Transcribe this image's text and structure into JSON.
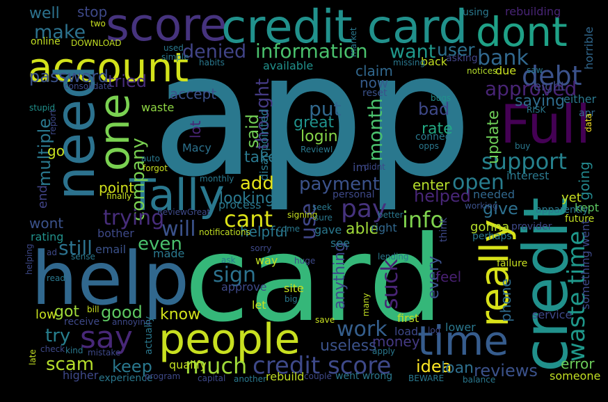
{
  "image": {
    "background": "#000000"
  },
  "words": [
    {
      "id": "app",
      "text": "app",
      "color": "#2a788e"
    },
    {
      "id": "card-big",
      "text": "card",
      "color": "#35b779"
    },
    {
      "id": "help",
      "text": "help",
      "color": "#31688e"
    },
    {
      "id": "credit-vert",
      "text": "credit",
      "color": "#21918c"
    },
    {
      "id": "score",
      "text": "score",
      "color": "#46337e"
    },
    {
      "id": "credit-card",
      "text": "credit card",
      "color": "#21918c"
    },
    {
      "id": "dont",
      "text": "dont",
      "color": "#1fa187"
    },
    {
      "id": "account",
      "text": "account",
      "color": "#d2e21b"
    },
    {
      "id": "need",
      "text": "need",
      "color": "#2c728e"
    },
    {
      "id": "full",
      "text": "Full",
      "color": "#440154"
    },
    {
      "id": "tally",
      "text": "Tally",
      "color": "#2a788e"
    },
    {
      "id": "people",
      "text": "people",
      "color": "#c8e020"
    },
    {
      "id": "time",
      "text": "time",
      "color": "#365c8d"
    },
    {
      "id": "say",
      "text": "say",
      "color": "#482878"
    },
    {
      "id": "one",
      "text": "one",
      "color": "#7ad151"
    },
    {
      "id": "really",
      "text": "really",
      "color": "#d8e219"
    },
    {
      "id": "credit-score",
      "text": "credit score",
      "color": "#3e4989"
    },
    {
      "id": "waste-time",
      "text": "waste time",
      "color": "#1f988b"
    },
    {
      "id": "debt",
      "text": "debt",
      "color": "#3b528b"
    },
    {
      "id": "bank",
      "text": "bank",
      "color": "#31688e"
    },
    {
      "id": "support",
      "text": "support",
      "color": "#26828e"
    },
    {
      "id": "approved",
      "text": "approved",
      "color": "#482475"
    },
    {
      "id": "information",
      "text": "information",
      "color": "#4ac16d"
    },
    {
      "id": "denied",
      "text": "denied",
      "color": "#414487"
    },
    {
      "id": "make",
      "text": "make",
      "color": "#2c728e"
    },
    {
      "id": "want",
      "text": "want",
      "color": "#1f988b"
    },
    {
      "id": "user",
      "text": "user",
      "color": "#2d708e"
    },
    {
      "id": "password",
      "text": "password",
      "color": "#3b528b"
    },
    {
      "id": "tried",
      "text": "tried",
      "color": "#472d7b"
    },
    {
      "id": "company",
      "text": "company",
      "color": "#7ad151"
    },
    {
      "id": "put",
      "text": "put",
      "color": "#31688e"
    },
    {
      "id": "bad",
      "text": "bad",
      "color": "#3e4989"
    },
    {
      "id": "rate",
      "text": "rate",
      "color": "#23a983"
    },
    {
      "id": "login",
      "text": "login",
      "color": "#86d549"
    },
    {
      "id": "great",
      "text": "great",
      "color": "#20928c"
    },
    {
      "id": "month",
      "text": "month",
      "color": "#4ac16d"
    },
    {
      "id": "thought",
      "text": "thought",
      "color": "#443a83"
    },
    {
      "id": "said",
      "text": "said",
      "color": "#73d056"
    },
    {
      "id": "take",
      "text": "take",
      "color": "#2a788e"
    },
    {
      "id": "open",
      "text": "open",
      "color": "#287d8e"
    },
    {
      "id": "payment",
      "text": "payment",
      "color": "#3b528b"
    },
    {
      "id": "add",
      "text": "add",
      "color": "#e5e419"
    },
    {
      "id": "looking",
      "text": "looking",
      "color": "#2a788e"
    },
    {
      "id": "will",
      "text": "will",
      "color": "#3b528b"
    },
    {
      "id": "trying",
      "text": "trying",
      "color": "#472d7b"
    },
    {
      "id": "pay",
      "text": "pay",
      "color": "#46337e"
    },
    {
      "id": "cant",
      "text": "cant",
      "color": "#dde318"
    },
    {
      "id": "info",
      "text": "info",
      "color": "#7fd34e"
    },
    {
      "id": "even",
      "text": "even",
      "color": "#4ac16d"
    },
    {
      "id": "still",
      "text": "still",
      "color": "#2c728e"
    },
    {
      "id": "point",
      "text": "point",
      "color": "#d2e21b"
    },
    {
      "id": "multiple",
      "text": "multiple",
      "color": "#2a788e"
    },
    {
      "id": "go",
      "text": "go",
      "color": "#c8e020"
    },
    {
      "id": "use",
      "text": "use",
      "color": "#404688"
    },
    {
      "id": "able",
      "text": "able",
      "color": "#a0da39"
    },
    {
      "id": "give",
      "text": "give",
      "color": "#2d708e"
    },
    {
      "id": "helped",
      "text": "helped",
      "color": "#482677"
    },
    {
      "id": "enter",
      "text": "enter",
      "color": "#b5de2b"
    },
    {
      "id": "suck",
      "text": "suck",
      "color": "#482475"
    },
    {
      "id": "sign",
      "text": "sign",
      "color": "#2c728e"
    },
    {
      "id": "anything",
      "text": "anything",
      "color": "#3e4989"
    },
    {
      "id": "work",
      "text": "work",
      "color": "#355f8d"
    },
    {
      "id": "every",
      "text": "every",
      "color": "#3b528b"
    },
    {
      "id": "feel",
      "text": "feel",
      "color": "#482071"
    },
    {
      "id": "phone",
      "text": "phone",
      "color": "#2f6c8e"
    },
    {
      "id": "got",
      "text": "got",
      "color": "#a0da39"
    },
    {
      "id": "good",
      "text": "good",
      "color": "#5ec962"
    },
    {
      "id": "know",
      "text": "know",
      "color": "#d2e21b"
    },
    {
      "id": "try",
      "text": "try",
      "color": "#277f8e"
    },
    {
      "id": "scam",
      "text": "scam",
      "color": "#b5de2b"
    },
    {
      "id": "much",
      "text": "much",
      "color": "#a0da39"
    },
    {
      "id": "keep",
      "text": "keep",
      "color": "#2a788e"
    },
    {
      "id": "useless",
      "text": "useless",
      "color": "#3b528b"
    },
    {
      "id": "money",
      "text": "money",
      "color": "#443983"
    },
    {
      "id": "idea",
      "text": "idea",
      "color": "#fde725"
    },
    {
      "id": "loan",
      "text": "loan",
      "color": "#2e6f8e"
    },
    {
      "id": "reviews",
      "text": "reviews",
      "color": "#3b528b"
    },
    {
      "id": "error",
      "text": "error",
      "color": "#6ccd5a"
    },
    {
      "id": "someone",
      "text": "someone",
      "color": "#c2df23"
    },
    {
      "id": "update",
      "text": "update",
      "color": "#6ece58"
    },
    {
      "id": "going",
      "text": "going",
      "color": "#23888e"
    },
    {
      "id": "saying",
      "text": "saying",
      "color": "#2f6c8e"
    },
    {
      "id": "accept",
      "text": "accept",
      "color": "#3b528b"
    },
    {
      "id": "waste",
      "text": "waste",
      "color": "#8fd744"
    },
    {
      "id": "lot",
      "text": "lot",
      "color": "#482475"
    },
    {
      "id": "disappointed",
      "text": "disappointed",
      "color": "#2a788e"
    },
    {
      "id": "macy",
      "text": "Macy",
      "color": "#2c728e"
    },
    {
      "id": "yet",
      "text": "yet",
      "color": "#c8e020"
    },
    {
      "id": "kept",
      "text": "kept",
      "color": "#5ec962"
    },
    {
      "id": "wont",
      "text": "wont",
      "color": "#3b528b"
    },
    {
      "id": "end",
      "text": "end",
      "color": "#414487"
    },
    {
      "id": "gonna",
      "text": "gonna",
      "color": "#b5de2b"
    },
    {
      "id": "helpful",
      "text": "helpful",
      "color": "#2a788e"
    },
    {
      "id": "now",
      "text": "now",
      "color": "#365c8d"
    },
    {
      "id": "claim",
      "text": "claim",
      "color": "#31688e"
    },
    {
      "id": "eight",
      "text": "eight",
      "color": "#3e4989"
    },
    {
      "id": "email",
      "text": "email",
      "color": "#3b528b"
    },
    {
      "id": "process",
      "text": "process",
      "color": "#2a788e"
    },
    {
      "id": "rating",
      "text": "rating",
      "color": "#21918c"
    },
    {
      "id": "well",
      "text": "well",
      "color": "#2c728e"
    },
    {
      "id": "stop",
      "text": "stop",
      "color": "#3e4989"
    },
    {
      "id": "using",
      "text": "using",
      "color": "#2a788e"
    },
    {
      "id": "rebuilding",
      "text": "rebuilding",
      "color": "#482475"
    },
    {
      "id": "available",
      "text": "available",
      "color": "#21918c"
    },
    {
      "id": "reset",
      "text": "reset",
      "color": "#3b528b"
    },
    {
      "id": "due",
      "text": "due",
      "color": "#c8e020"
    },
    {
      "id": "notices",
      "text": "notices",
      "color": "#b5de2b"
    },
    {
      "id": "saw",
      "text": "saw",
      "color": "#2a788e"
    },
    {
      "id": "either",
      "text": "either",
      "color": "#2a788e"
    },
    {
      "id": "apr",
      "text": "apr",
      "color": "#31688e"
    },
    {
      "id": "risk",
      "text": "RISK",
      "color": "#2a788e"
    },
    {
      "id": "data",
      "text": "data",
      "color": "#fde725"
    },
    {
      "id": "horrible",
      "text": "horrible",
      "color": "#31688e"
    },
    {
      "id": "bugs",
      "text": "bugs",
      "color": "#21918c"
    },
    {
      "id": "connect",
      "text": "connect",
      "color": "#2a788e"
    },
    {
      "id": "opps",
      "text": "opps",
      "color": "#2a788e"
    },
    {
      "id": "buy",
      "text": "buy",
      "color": "#2a788e"
    },
    {
      "id": "interest",
      "text": "interest",
      "color": "#2a788e"
    },
    {
      "id": "needed",
      "text": "needed",
      "color": "#31688e"
    },
    {
      "id": "working",
      "text": "working",
      "color": "#3b528b"
    },
    {
      "id": "apparently",
      "text": "apparently",
      "color": "#2a788e"
    },
    {
      "id": "future",
      "text": "future",
      "color": "#c2df23"
    },
    {
      "id": "provider",
      "text": "provider",
      "color": "#3e4989"
    },
    {
      "id": "perhaps",
      "text": "perhaps",
      "color": "#2a788e"
    },
    {
      "id": "think",
      "text": "think",
      "color": "#3e4989"
    },
    {
      "id": "something-went",
      "text": "something went",
      "color": "#3e4989"
    },
    {
      "id": "failure",
      "text": "failure",
      "color": "#c8e020"
    },
    {
      "id": "back",
      "text": "back",
      "color": "#c2df23"
    },
    {
      "id": "asking",
      "text": "asking",
      "color": "#414487"
    },
    {
      "id": "missing",
      "text": "missing",
      "color": "#2a788e"
    },
    {
      "id": "market",
      "text": "market",
      "color": "#2a788e"
    },
    {
      "id": "two",
      "text": "two",
      "color": "#c8e020"
    },
    {
      "id": "online",
      "text": "online",
      "color": "#c2df23"
    },
    {
      "id": "download",
      "text": "DOWNLOAD",
      "color": "#c2df23"
    },
    {
      "id": "used",
      "text": "used",
      "color": "#2a788e"
    },
    {
      "id": "simple",
      "text": "simple",
      "color": "#2a788e"
    },
    {
      "id": "habits",
      "text": "habits",
      "color": "#2a788e"
    },
    {
      "id": "consolidate",
      "text": "consolidate",
      "color": "#3e4989"
    },
    {
      "id": "stupid",
      "text": "stupid",
      "color": "#21918c"
    },
    {
      "id": "report",
      "text": "report",
      "color": "#3e4989"
    },
    {
      "id": "auto",
      "text": "auto",
      "color": "#2a788e"
    },
    {
      "id": "forgot",
      "text": "forgot",
      "color": "#c8e020"
    },
    {
      "id": "reviewi",
      "text": "ReviewI",
      "color": "#2a788e"
    },
    {
      "id": "didnt",
      "text": "didnt",
      "color": "#3e4989"
    },
    {
      "id": "im",
      "text": "im",
      "color": "#3e4989"
    },
    {
      "id": "personal",
      "text": "personal",
      "color": "#3e4989"
    },
    {
      "id": "monthly",
      "text": "monthly",
      "color": "#2a788e"
    },
    {
      "id": "finally",
      "text": "finally",
      "color": "#c8e020"
    },
    {
      "id": "reviewgreat",
      "text": "ReviewGreat",
      "color": "#3e4989"
    },
    {
      "id": "notifications",
      "text": "notifications",
      "color": "#c2df23"
    },
    {
      "id": "signing",
      "text": "signing",
      "color": "#c8e020"
    },
    {
      "id": "seek",
      "text": "seek",
      "color": "#2a788e"
    },
    {
      "id": "sure",
      "text": "sure",
      "color": "#2a788e"
    },
    {
      "id": "better",
      "text": "better",
      "color": "#2a788e"
    },
    {
      "id": "come",
      "text": "come",
      "color": "#2a788e"
    },
    {
      "id": "gave",
      "text": "gave",
      "color": "#2a788e"
    },
    {
      "id": "right",
      "text": "right",
      "color": "#31688e"
    },
    {
      "id": "bother",
      "text": "bother",
      "color": "#3e4989"
    },
    {
      "id": "helping",
      "text": "helping",
      "color": "#3e4989"
    },
    {
      "id": "ad",
      "text": "ad",
      "color": "#3e4989"
    },
    {
      "id": "made",
      "text": "made",
      "color": "#2a788e"
    },
    {
      "id": "sorry",
      "text": "sorry",
      "color": "#3e4989"
    },
    {
      "id": "see",
      "text": "see",
      "color": "#2a788e"
    },
    {
      "id": "sense",
      "text": "sense",
      "color": "#2a788e"
    },
    {
      "id": "ask",
      "text": "ask",
      "color": "#2a788e"
    },
    {
      "id": "way",
      "text": "way",
      "color": "#c2df23"
    },
    {
      "id": "huge",
      "text": "huge",
      "color": "#3e4989"
    },
    {
      "id": "lending",
      "text": "lending",
      "color": "#2a788e"
    },
    {
      "id": "read",
      "text": "read",
      "color": "#2a788e"
    },
    {
      "id": "approve",
      "text": "approve",
      "color": "#3e4989"
    },
    {
      "id": "site",
      "text": "site",
      "color": "#c8e020"
    },
    {
      "id": "big",
      "text": "big",
      "color": "#2a788e"
    },
    {
      "id": "let",
      "text": "let",
      "color": "#c8e020"
    },
    {
      "id": "bill",
      "text": "bill",
      "color": "#c8e020"
    },
    {
      "id": "low",
      "text": "low",
      "color": "#c8e020"
    },
    {
      "id": "receive",
      "text": "receive",
      "color": "#3e4989"
    },
    {
      "id": "annoying",
      "text": "annoying",
      "color": "#3e4989"
    },
    {
      "id": "many",
      "text": "many",
      "color": "#c2df23"
    },
    {
      "id": "save",
      "text": "save",
      "color": "#c8e020"
    },
    {
      "id": "first",
      "text": "first",
      "color": "#c2df23"
    },
    {
      "id": "load",
      "text": "load",
      "color": "#3e4989"
    },
    {
      "id": "log",
      "text": "log",
      "color": "#3e4989"
    },
    {
      "id": "lower",
      "text": "lower",
      "color": "#2a788e"
    },
    {
      "id": "service",
      "text": "service",
      "color": "#3e4989"
    },
    {
      "id": "actually",
      "text": "actually",
      "color": "#2a788e"
    },
    {
      "id": "check",
      "text": "check",
      "color": "#3e4989"
    },
    {
      "id": "kind",
      "text": "kind",
      "color": "#2a788e"
    },
    {
      "id": "mistake",
      "text": "mistake",
      "color": "#3e4989"
    },
    {
      "id": "qualify",
      "text": "qualify",
      "color": "#c2df23"
    },
    {
      "id": "apply",
      "text": "apply",
      "color": "#2a788e"
    },
    {
      "id": "late",
      "text": "late",
      "color": "#c2df23"
    },
    {
      "id": "higher",
      "text": "higher",
      "color": "#3e4989"
    },
    {
      "id": "experience",
      "text": "experience",
      "color": "#2a788e"
    },
    {
      "id": "program",
      "text": "program",
      "color": "#3e4989"
    },
    {
      "id": "capital",
      "text": "capital",
      "color": "#3e4989"
    },
    {
      "id": "another",
      "text": "another",
      "color": "#2a788e"
    },
    {
      "id": "rebuild",
      "text": "rebuild",
      "color": "#c2df23"
    },
    {
      "id": "couple",
      "text": "couple",
      "color": "#3e4989"
    },
    {
      "id": "went-wrong",
      "text": "went wrong",
      "color": "#2a788e"
    },
    {
      "id": "beware",
      "text": "BEWARE",
      "color": "#2a788e"
    },
    {
      "id": "balance",
      "text": "balance",
      "color": "#2a788e"
    }
  ]
}
